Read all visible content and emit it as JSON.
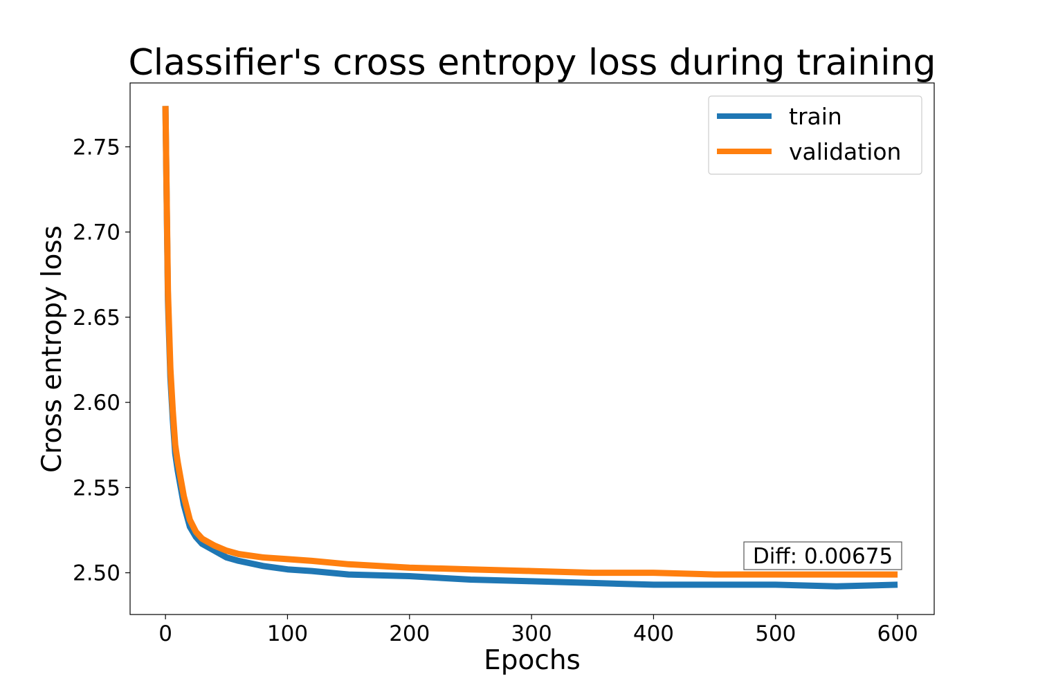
{
  "chart_data": {
    "type": "line",
    "title": "Classifier's cross entropy loss during training",
    "xlabel": "Epochs",
    "ylabel": "Cross entropy loss",
    "xlim": [
      -29,
      630
    ],
    "ylim": [
      2.4755,
      2.7875
    ],
    "xticks": [
      0,
      100,
      200,
      300,
      400,
      500,
      600
    ],
    "xtick_labels": [
      "0",
      "100",
      "200",
      "300",
      "400",
      "500",
      "600"
    ],
    "yticks": [
      2.5,
      2.55,
      2.6,
      2.65,
      2.7,
      2.75
    ],
    "ytick_labels": [
      "2.50",
      "2.55",
      "2.60",
      "2.65",
      "2.70",
      "2.75"
    ],
    "grid": false,
    "legend_position": "top-right",
    "annotation": "Diff: 0.00675",
    "series": [
      {
        "name": "train",
        "color": "#1f77b4",
        "x": [
          0,
          2,
          4,
          6,
          8,
          10,
          12,
          15,
          20,
          25,
          30,
          40,
          50,
          60,
          80,
          100,
          120,
          150,
          200,
          250,
          300,
          350,
          400,
          450,
          500,
          550,
          600
        ],
        "y": [
          2.774,
          2.66,
          2.615,
          2.59,
          2.57,
          2.56,
          2.552,
          2.54,
          2.527,
          2.521,
          2.517,
          2.513,
          2.509,
          2.507,
          2.504,
          2.502,
          2.501,
          2.499,
          2.498,
          2.496,
          2.495,
          2.494,
          2.493,
          2.493,
          2.493,
          2.492,
          2.493
        ]
      },
      {
        "name": "validation",
        "color": "#ff7f0e",
        "x": [
          0,
          2,
          4,
          6,
          8,
          10,
          12,
          15,
          20,
          25,
          30,
          40,
          50,
          60,
          80,
          100,
          120,
          150,
          200,
          250,
          300,
          350,
          400,
          450,
          500,
          550,
          600
        ],
        "y": [
          2.774,
          2.665,
          2.62,
          2.595,
          2.575,
          2.565,
          2.557,
          2.545,
          2.531,
          2.524,
          2.52,
          2.516,
          2.513,
          2.511,
          2.509,
          2.508,
          2.507,
          2.505,
          2.503,
          2.502,
          2.501,
          2.5,
          2.5,
          2.499,
          2.499,
          2.499,
          2.499
        ]
      }
    ]
  }
}
